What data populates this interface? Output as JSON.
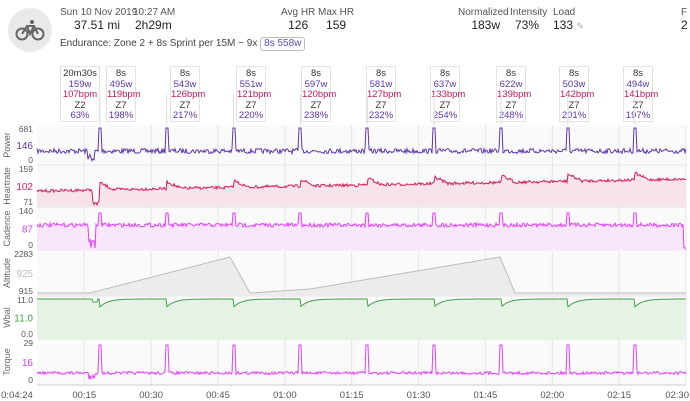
{
  "header": {
    "date": "Sun 10 Nov 2019",
    "time": "10:27 AM",
    "distance": "37.51 mi",
    "duration": "2h29m",
    "avg_hr_label": "Avg HR",
    "avg_hr": "126",
    "max_hr_label": "Max HR",
    "max_hr": "159",
    "normalized_label": "Normalized",
    "normalized": "183w",
    "intensity_label": "Intensity",
    "intensity": "73%",
    "load_label": "Load",
    "load": "133",
    "f_label": "F",
    "f_value": "2",
    "description": "Endurance: Zone 2 + 8s Sprint per 15M ~ 9x",
    "badge": "8s 558w"
  },
  "intervals": [
    {
      "dur": "20m30s",
      "watts": "159w",
      "hr": "107bpm",
      "zone": "Z2",
      "pct": "63%"
    },
    {
      "dur": "8s",
      "watts": "495w",
      "hr": "119bpm",
      "zone": "Z7",
      "pct": "198%"
    },
    {
      "dur": "8s",
      "watts": "543w",
      "hr": "126bpm",
      "zone": "Z7",
      "pct": "217%"
    },
    {
      "dur": "8s",
      "watts": "551w",
      "hr": "121bpm",
      "zone": "Z7",
      "pct": "220%"
    },
    {
      "dur": "8s",
      "watts": "597w",
      "hr": "120bpm",
      "zone": "Z7",
      "pct": "238%"
    },
    {
      "dur": "8s",
      "watts": "581w",
      "hr": "127bpm",
      "zone": "Z7",
      "pct": "232%"
    },
    {
      "dur": "8s",
      "watts": "637w",
      "hr": "133bpm",
      "zone": "Z7",
      "pct": "254%"
    },
    {
      "dur": "8s",
      "watts": "622w",
      "hr": "139bpm",
      "zone": "Z7",
      "pct": "248%"
    },
    {
      "dur": "8s",
      "watts": "503w",
      "hr": "142bpm",
      "zone": "Z7",
      "pct": "201%"
    },
    {
      "dur": "8s",
      "watts": "494w",
      "hr": "141bpm",
      "zone": "Z7",
      "pct": "197%"
    }
  ],
  "panels": [
    {
      "label": "Power",
      "ticks": [
        "681",
        "146",
        "0"
      ],
      "color": "#5e35b1",
      "fill": "#ede8f6"
    },
    {
      "label": "Heartrate",
      "ticks": [
        "159",
        "102",
        "71"
      ],
      "color": "#d81b60",
      "fill": "#f7e3ea"
    },
    {
      "label": "Cadence",
      "ticks": [
        "140",
        "87",
        "0"
      ],
      "color": "#e040fb",
      "fill": "#f8e6fb"
    },
    {
      "label": "Altitude",
      "ticks": [
        "2283",
        "925",
        "915"
      ],
      "color": "#bdbdbd",
      "fill": "#ececec"
    },
    {
      "label": "Wbal",
      "ticks": [
        "11.0",
        "11.0",
        "0.0"
      ],
      "color": "#43a047",
      "fill": "#e6f2e6"
    },
    {
      "label": "Torque",
      "ticks": [
        "29",
        "16",
        "0"
      ],
      "color": "#e040fb",
      "fill": "#f8e6fb"
    }
  ],
  "time_axis": [
    "0:04:24",
    "00:15",
    "00:30",
    "00:45",
    "01:00",
    "01:15",
    "01:30",
    "01:45",
    "02:00",
    "02:15",
    "02:30"
  ],
  "colors": {
    "grid": "#e6e6e6",
    "axis_text": "#555",
    "accent": "#5b4fc9"
  }
}
